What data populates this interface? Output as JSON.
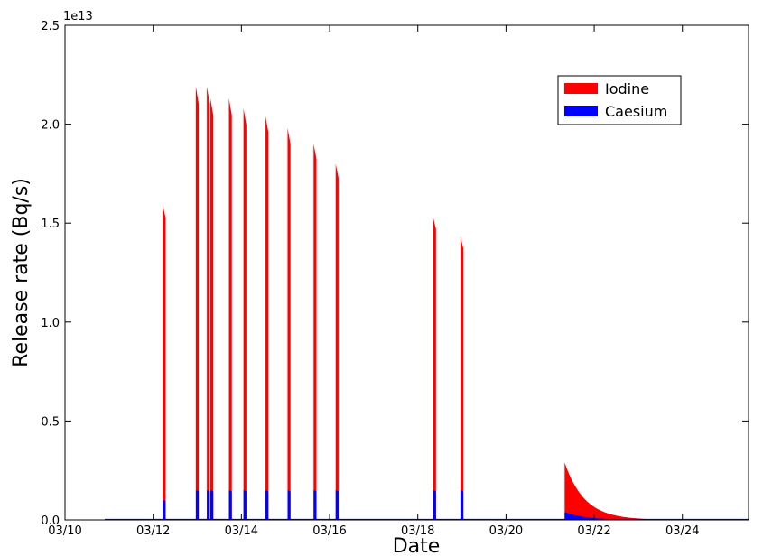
{
  "chart_data": {
    "type": "area",
    "xlabel": "Date",
    "ylabel": "Release rate (Bq/s)",
    "y_multiplier_label": "1e13",
    "x_tick_labels": [
      "03/10",
      "03/12",
      "03/14",
      "03/16",
      "03/18",
      "03/20",
      "03/22",
      "03/24"
    ],
    "x_tick_values": [
      10,
      12,
      14,
      16,
      18,
      20,
      22,
      24
    ],
    "y_tick_labels": [
      "0.0",
      "0.5",
      "1.0",
      "1.5",
      "2.0",
      "2.5"
    ],
    "y_tick_values": [
      0,
      0.5,
      1.0,
      1.5,
      2.0,
      2.5
    ],
    "x_unit": "day of March 2011",
    "xlim": [
      10,
      25.5
    ],
    "ylim": [
      0,
      2.5
    ],
    "y_scale": "x 1e13",
    "legend_position": "top-right",
    "grid": false,
    "series": [
      {
        "name": "Iodine",
        "color": "#ff0000",
        "pulses": [
          {
            "x": 12.25,
            "y": 1.59
          },
          {
            "x": 13.0,
            "y": 2.19
          },
          {
            "x": 13.25,
            "y": 2.19
          },
          {
            "x": 13.33,
            "y": 2.13
          },
          {
            "x": 13.75,
            "y": 2.13
          },
          {
            "x": 14.08,
            "y": 2.08
          },
          {
            "x": 14.58,
            "y": 2.04
          },
          {
            "x": 15.08,
            "y": 1.98
          },
          {
            "x": 15.67,
            "y": 1.9
          },
          {
            "x": 16.17,
            "y": 1.8
          },
          {
            "x": 18.38,
            "y": 1.53
          },
          {
            "x": 19.0,
            "y": 1.43
          }
        ],
        "decay": {
          "x_start": 21.33,
          "y_start": 0.29,
          "x_end": 24.0,
          "decay_days": 0.45
        }
      },
      {
        "name": "Caesium",
        "color": "#0000ff",
        "pulses": [
          {
            "x": 12.25,
            "y": 0.1
          },
          {
            "x": 13.0,
            "y": 0.15
          },
          {
            "x": 13.25,
            "y": 0.15
          },
          {
            "x": 13.33,
            "y": 0.15
          },
          {
            "x": 13.75,
            "y": 0.15
          },
          {
            "x": 14.08,
            "y": 0.15
          },
          {
            "x": 14.58,
            "y": 0.15
          },
          {
            "x": 15.08,
            "y": 0.15
          },
          {
            "x": 15.67,
            "y": 0.15
          },
          {
            "x": 16.17,
            "y": 0.15
          },
          {
            "x": 18.38,
            "y": 0.15
          },
          {
            "x": 19.0,
            "y": 0.15
          }
        ],
        "decay": {
          "x_start": 21.33,
          "y_start": 0.04,
          "x_end": 24.0,
          "decay_days": 0.45
        }
      }
    ]
  }
}
